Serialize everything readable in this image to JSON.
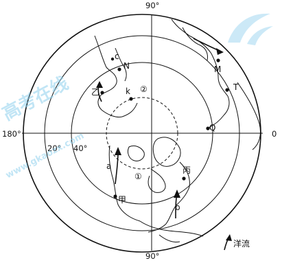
{
  "degree_labels": {
    "top": "90°",
    "bottom": "90°",
    "left": "180°",
    "right": "0",
    "lat20": "20°",
    "lat40": "40°"
  },
  "city_labels": {
    "N": "N",
    "c": "c",
    "yi": "乙",
    "k": "k",
    "M": "M",
    "T": "T",
    "Q": "Q",
    "bing": "丙",
    "jia": "甲",
    "a": "a",
    "b": "b"
  },
  "region_labels": {
    "r1": "①",
    "r2": "②"
  },
  "legend": {
    "label": "洋流"
  },
  "watermark": {
    "title": "高考在线",
    "url": "www.gkaozx.com"
  },
  "colors": {
    "ink": "#111111",
    "watermark": "#8fd0ee"
  }
}
